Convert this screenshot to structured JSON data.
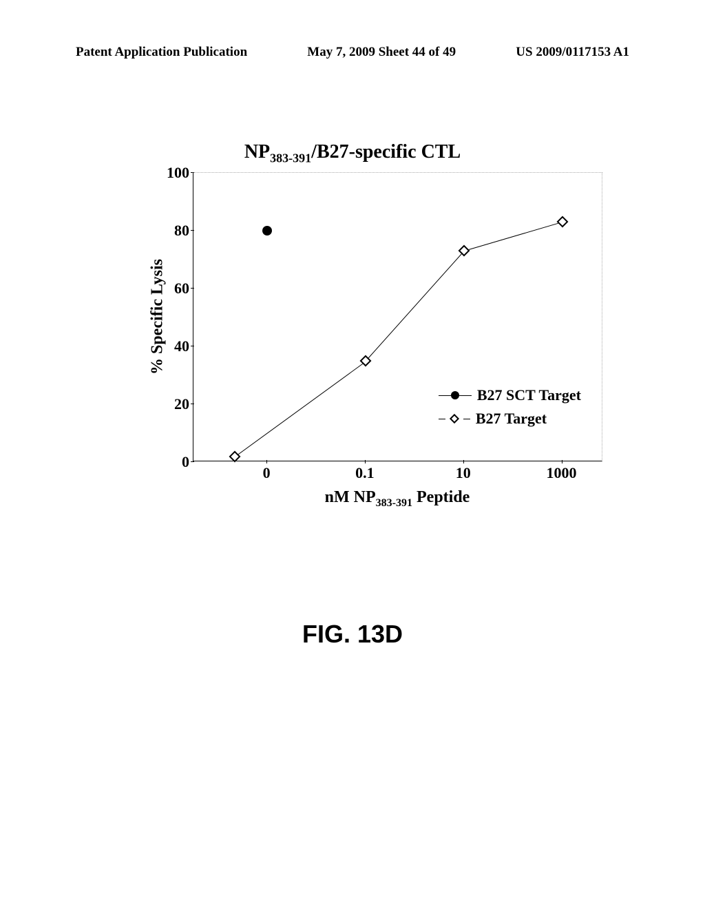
{
  "header": {
    "left": "Patent Application Publication",
    "center": "May 7, 2009  Sheet 44 of 49",
    "right": "US 2009/0117153 A1"
  },
  "chart": {
    "type": "line",
    "title_prefix": "NP",
    "title_sub": "383-391",
    "title_suffix": "/B27-specific CTL",
    "y_label": "% Specific Lysis",
    "x_label_prefix": "nM NP",
    "x_label_sub": "383-391",
    "x_label_suffix": " Peptide",
    "ylim": [
      0,
      100
    ],
    "y_ticks": [
      0,
      20,
      40,
      60,
      80,
      100
    ],
    "x_ticks": [
      "0",
      "0.1",
      "10",
      "1000"
    ],
    "x_tick_positions": [
      0.18,
      0.42,
      0.66,
      0.9
    ],
    "series": [
      {
        "name": "B27 SCT Target",
        "marker": "filled-circle",
        "points": [
          {
            "x": 0.18,
            "y": 80
          }
        ]
      },
      {
        "name": "B27 Target",
        "marker": "open-diamond",
        "points": [
          {
            "x": 0.1,
            "y": 2
          },
          {
            "x": 0.42,
            "y": 35
          },
          {
            "x": 0.66,
            "y": 73
          },
          {
            "x": 0.9,
            "y": 83
          }
        ]
      }
    ],
    "legend": [
      {
        "label": "B27 SCT Target",
        "marker": "filled"
      },
      {
        "label": "B27 Target",
        "marker": "open"
      }
    ],
    "colors": {
      "background": "#ffffff",
      "axis": "#000000",
      "grid": "#aaaaaa",
      "text": "#000000"
    }
  },
  "figure_label": "FIG. 13D"
}
